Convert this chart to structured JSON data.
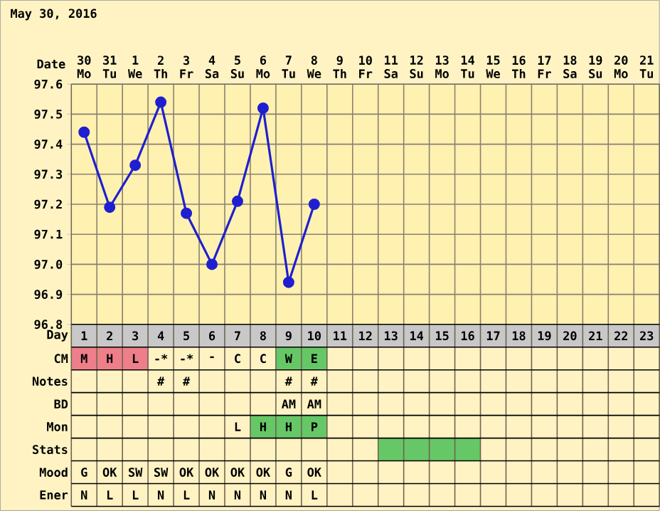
{
  "chart_data": [
    {
      "type": "line",
      "title": "May 30, 2016",
      "xlabel": "Date",
      "categories": [
        "30 Mo",
        "31 Tu",
        "1 We",
        "2 Th",
        "3 Fr",
        "4 Sa",
        "5 Su",
        "6 Mo",
        "7 Tu",
        "8 We",
        "9 Th",
        "10 Fr",
        "11 Sa",
        "12 Su",
        "13 Mo",
        "14 Tu",
        "15 We",
        "16 Th",
        "17 Fr",
        "18 Sa",
        "19 Su",
        "20 Mo",
        "21 Tu"
      ],
      "series": [
        {
          "color": "#1f1fd0",
          "values": [
            97.44,
            97.19,
            97.33,
            97.54,
            97.17,
            97.0,
            97.21,
            97.52,
            96.94,
            97.2,
            null,
            null,
            null,
            null,
            null,
            null,
            null,
            null,
            null,
            null,
            null,
            null,
            null
          ]
        }
      ],
      "ylim": [
        96.8,
        97.6
      ],
      "yticks": [
        96.8,
        96.9,
        {
          "value": 97.0,
          "label": "97.0"
        },
        97.1,
        97.2,
        97.3,
        97.4,
        97.5,
        97.6
      ],
      "grid": true,
      "marker": "circle",
      "line_style": "solid"
    },
    {
      "type": "heatmap",
      "xlabel": "Day",
      "cells": [
        [
          null,
          null,
          null,
          null,
          null,
          null,
          null,
          null,
          null,
          null,
          null,
          null,
          null,
          null,
          null,
          null,
          null,
          null,
          null,
          null,
          null,
          null,
          null
        ],
        [
          null,
          null,
          null,
          null,
          null,
          null,
          null,
          null,
          null,
          null,
          null,
          null,
          null,
          null,
          null,
          null,
          null,
          null,
          null,
          null,
          null,
          null,
          null
        ],
        [
          null,
          null,
          null,
          null,
          null,
          null,
          null,
          null,
          null,
          null,
          null,
          null,
          null,
          null,
          null,
          null,
          null,
          null,
          null,
          null,
          null,
          null,
          null
        ],
        [
          null,
          null,
          null,
          null,
          null,
          null,
          null,
          null,
          null,
          null,
          null,
          null,
          null,
          null,
          null,
          null,
          null,
          null,
          null,
          null,
          null,
          null,
          null
        ],
        [
          null,
          null,
          null,
          null,
          null,
          null,
          null,
          null,
          null,
          null,
          null,
          null,
          null,
          null,
          null,
          null,
          null,
          null,
          null,
          null,
          null,
          null,
          null
        ],
        [
          null,
          null,
          null,
          null,
          null,
          null,
          null,
          null,
          null,
          null,
          null,
          null,
          null,
          null,
          null,
          null,
          null,
          null,
          null,
          null,
          null,
          null,
          null
        ],
        [
          null,
          null,
          null,
          null,
          null,
          null,
          null,
          null,
          null,
          null,
          null,
          null,
          null,
          null,
          null,
          null,
          null,
          null,
          null,
          null,
          null,
          null,
          null
        ]
      ],
      "categories": [
        "1",
        "2",
        "3",
        "4",
        "5",
        "6",
        "7",
        "8",
        "9",
        "10",
        "11",
        "12",
        "13",
        "14",
        "15",
        "16",
        "17",
        "18",
        "19",
        "20",
        "21",
        "22",
        "23"
      ],
      "y_categories": [
        "CM",
        "Notes",
        "BD",
        "Mon",
        "Stats",
        "Mood",
        "Ener"
      ],
      "cell_labels": [
        [
          "M",
          "H",
          "L",
          "-*",
          "-*",
          "-",
          "C",
          "C",
          "W",
          "E",
          null,
          null,
          null,
          null,
          null,
          null,
          null,
          null,
          null,
          null,
          null,
          null,
          null
        ],
        [
          null,
          null,
          null,
          "#",
          "#",
          null,
          null,
          null,
          "#",
          "#",
          null,
          null,
          null,
          null,
          null,
          null,
          null,
          null,
          null,
          null,
          null,
          null,
          null
        ],
        [
          null,
          null,
          null,
          null,
          null,
          null,
          null,
          null,
          "AM",
          "AM",
          null,
          null,
          null,
          null,
          null,
          null,
          null,
          null,
          null,
          null,
          null,
          null,
          null
        ],
        [
          null,
          null,
          null,
          null,
          null,
          null,
          "L",
          "H",
          "H",
          "P",
          null,
          null,
          null,
          null,
          null,
          null,
          null,
          null,
          null,
          null,
          null,
          null,
          null
        ],
        [
          null,
          null,
          null,
          null,
          null,
          null,
          null,
          null,
          null,
          null,
          null,
          null,
          null,
          null,
          null,
          null,
          null,
          null,
          null,
          null,
          null,
          null,
          null
        ],
        [
          "G",
          "OK",
          "SW",
          "SW",
          "OK",
          "OK",
          "OK",
          "OK",
          "G",
          "OK",
          null,
          null,
          null,
          null,
          null,
          null,
          null,
          null,
          null,
          null,
          null,
          null,
          null
        ],
        [
          "N",
          "L",
          "L",
          "N",
          "L",
          "N",
          "N",
          "N",
          "N",
          "L",
          null,
          null,
          null,
          null,
          null,
          null,
          null,
          null,
          null,
          null,
          null,
          null,
          null
        ]
      ],
      "colors": [
        [
          "#ee7f8a",
          "#ee7f8a",
          "#ee7f8a",
          null,
          null,
          null,
          null,
          null,
          "#66c766",
          "#66c766",
          null,
          null,
          null,
          null,
          null,
          null,
          null,
          null,
          null,
          null,
          null,
          null,
          null
        ],
        [
          null,
          null,
          null,
          null,
          null,
          null,
          null,
          null,
          null,
          null,
          null,
          null,
          null,
          null,
          null,
          null,
          null,
          null,
          null,
          null,
          null,
          null,
          null
        ],
        [
          null,
          null,
          null,
          null,
          null,
          null,
          null,
          null,
          null,
          null,
          null,
          null,
          null,
          null,
          null,
          null,
          null,
          null,
          null,
          null,
          null,
          null,
          null
        ],
        [
          null,
          null,
          null,
          null,
          null,
          null,
          null,
          "#66c766",
          "#66c766",
          "#66c766",
          null,
          null,
          null,
          null,
          null,
          null,
          null,
          null,
          null,
          null,
          null,
          null,
          null
        ],
        [
          null,
          null,
          null,
          null,
          null,
          null,
          null,
          null,
          null,
          null,
          null,
          null,
          "#66c766",
          "#66c766",
          "#66c766",
          "#66c766",
          null,
          null,
          null,
          null,
          null,
          null,
          null
        ],
        [
          null,
          null,
          null,
          null,
          null,
          null,
          null,
          null,
          null,
          null,
          null,
          null,
          null,
          null,
          null,
          null,
          null,
          null,
          null,
          null,
          null,
          null,
          null
        ],
        [
          null,
          null,
          null,
          null,
          null,
          null,
          null,
          null,
          null,
          null,
          null,
          null,
          null,
          null,
          null,
          null,
          null,
          null,
          null,
          null,
          null,
          null,
          null
        ]
      ]
    }
  ]
}
